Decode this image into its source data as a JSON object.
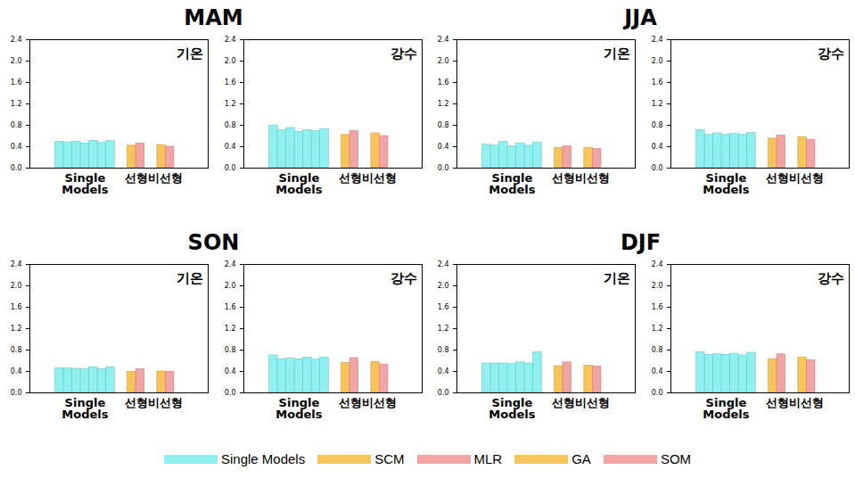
{
  "chart_data": [
    {
      "type": "bar",
      "title": "MAM",
      "subtitle": "기온",
      "categories": [
        "Single Models",
        null,
        null,
        null,
        null,
        null,
        null,
        "선형",
        null,
        "비선형",
        null
      ],
      "series": [
        {
          "name": "Single Models",
          "color": "#8ff0f0",
          "values": [
            0.49,
            0.48,
            0.49,
            0.46,
            0.51,
            0.47,
            0.51,
            null,
            null,
            null,
            null
          ]
        },
        {
          "name": "SCM",
          "color": "#f7c45a",
          "values": [
            null,
            null,
            null,
            null,
            null,
            null,
            null,
            0.42,
            null,
            null,
            null
          ]
        },
        {
          "name": "MLR",
          "color": "#f4a3a3",
          "values": [
            null,
            null,
            null,
            null,
            null,
            null,
            null,
            null,
            0.46,
            null,
            null
          ]
        },
        {
          "name": "GA",
          "color": "#f7c45a",
          "values": [
            null,
            null,
            null,
            null,
            null,
            null,
            null,
            null,
            null,
            0.43,
            null
          ]
        },
        {
          "name": "SOM",
          "color": "#f4a3a3",
          "values": [
            null,
            null,
            null,
            null,
            null,
            null,
            null,
            null,
            null,
            null,
            0.4
          ]
        }
      ],
      "ylim": [
        0,
        2.4
      ],
      "yticks": [
        {
          "value": 0,
          "label": "0.0"
        },
        {
          "value": 0.4,
          "label": "0.4"
        },
        {
          "value": 0.8,
          "label": "0.8"
        },
        {
          "value": 1.2,
          "label": "1.2"
        },
        {
          "value": 1.6,
          "label": "1.6"
        },
        {
          "value": 2,
          "label": "2.0"
        },
        {
          "value": 2.4,
          "label": "2.4"
        }
      ],
      "grid": false
    },
    {
      "type": "bar",
      "subtitle": "강수",
      "categories": [
        "Single Models",
        null,
        null,
        null,
        null,
        null,
        null,
        "선형",
        null,
        "비선형",
        null
      ],
      "series": [
        {
          "name": "Single Models",
          "color": "#8ff0f0",
          "values": [
            0.79,
            0.71,
            0.75,
            0.68,
            0.71,
            0.69,
            0.73,
            null,
            null,
            null,
            null
          ]
        },
        {
          "name": "SCM",
          "color": "#f7c45a",
          "values": [
            null,
            null,
            null,
            null,
            null,
            null,
            null,
            0.62,
            null,
            null,
            null
          ]
        },
        {
          "name": "MLR",
          "color": "#f4a3a3",
          "values": [
            null,
            null,
            null,
            null,
            null,
            null,
            null,
            null,
            0.69,
            null,
            null
          ]
        },
        {
          "name": "GA",
          "color": "#f7c45a",
          "values": [
            null,
            null,
            null,
            null,
            null,
            null,
            null,
            null,
            null,
            0.65,
            null
          ]
        },
        {
          "name": "SOM",
          "color": "#f4a3a3",
          "values": [
            null,
            null,
            null,
            null,
            null,
            null,
            null,
            null,
            null,
            null,
            0.6
          ]
        }
      ],
      "ylim": [
        0,
        2.4
      ],
      "yticks": [
        {
          "value": 0,
          "label": "0.0"
        },
        {
          "value": 0.4,
          "label": "0.4"
        },
        {
          "value": 0.8,
          "label": "0.8"
        },
        {
          "value": 1.2,
          "label": "1.2"
        },
        {
          "value": 1.6,
          "label": "1.6"
        },
        {
          "value": 2,
          "label": "2.0"
        },
        {
          "value": 2.4,
          "label": "2.4"
        }
      ],
      "grid": false
    },
    {
      "type": "bar",
      "title": "JJA",
      "subtitle": "기온",
      "categories": [
        "Single Models",
        null,
        null,
        null,
        null,
        null,
        null,
        "선형",
        null,
        "비선형",
        null
      ],
      "series": [
        {
          "name": "Single Models",
          "color": "#8ff0f0",
          "values": [
            0.44,
            0.42,
            0.49,
            0.41,
            0.46,
            0.42,
            0.48,
            null,
            null,
            null,
            null
          ]
        },
        {
          "name": "SCM",
          "color": "#f7c45a",
          "values": [
            null,
            null,
            null,
            null,
            null,
            null,
            null,
            0.38,
            null,
            null,
            null
          ]
        },
        {
          "name": "MLR",
          "color": "#f4a3a3",
          "values": [
            null,
            null,
            null,
            null,
            null,
            null,
            null,
            null,
            0.41,
            null,
            null
          ]
        },
        {
          "name": "GA",
          "color": "#f7c45a",
          "values": [
            null,
            null,
            null,
            null,
            null,
            null,
            null,
            null,
            null,
            0.38,
            null
          ]
        },
        {
          "name": "SOM",
          "color": "#f4a3a3",
          "values": [
            null,
            null,
            null,
            null,
            null,
            null,
            null,
            null,
            null,
            null,
            0.36
          ]
        }
      ],
      "ylim": [
        0,
        2.4
      ],
      "yticks": [
        {
          "value": 0,
          "label": "0.0"
        },
        {
          "value": 0.4,
          "label": "0.4"
        },
        {
          "value": 0.8,
          "label": "0.8"
        },
        {
          "value": 1.2,
          "label": "1.2"
        },
        {
          "value": 1.6,
          "label": "1.6"
        },
        {
          "value": 2,
          "label": "2.0"
        },
        {
          "value": 2.4,
          "label": "2.4"
        }
      ],
      "grid": false
    },
    {
      "type": "bar",
      "subtitle": "강수",
      "categories": [
        "Single Models",
        null,
        null,
        null,
        null,
        null,
        null,
        "선형",
        null,
        "비선형",
        null
      ],
      "series": [
        {
          "name": "Single Models",
          "color": "#8ff0f0",
          "values": [
            0.71,
            0.62,
            0.65,
            0.62,
            0.64,
            0.62,
            0.66,
            null,
            null,
            null,
            null
          ]
        },
        {
          "name": "SCM",
          "color": "#f7c45a",
          "values": [
            null,
            null,
            null,
            null,
            null,
            null,
            null,
            0.55,
            null,
            null,
            null
          ]
        },
        {
          "name": "MLR",
          "color": "#f4a3a3",
          "values": [
            null,
            null,
            null,
            null,
            null,
            null,
            null,
            null,
            0.61,
            null,
            null
          ]
        },
        {
          "name": "GA",
          "color": "#f7c45a",
          "values": [
            null,
            null,
            null,
            null,
            null,
            null,
            null,
            null,
            null,
            0.58,
            null
          ]
        },
        {
          "name": "SOM",
          "color": "#f4a3a3",
          "values": [
            null,
            null,
            null,
            null,
            null,
            null,
            null,
            null,
            null,
            null,
            0.53
          ]
        }
      ],
      "ylim": [
        0,
        2.4
      ],
      "yticks": [
        {
          "value": 0,
          "label": "0.0"
        },
        {
          "value": 0.4,
          "label": "0.4"
        },
        {
          "value": 0.8,
          "label": "0.8"
        },
        {
          "value": 1.2,
          "label": "1.2"
        },
        {
          "value": 1.6,
          "label": "1.6"
        },
        {
          "value": 2,
          "label": "2.0"
        },
        {
          "value": 2.4,
          "label": "2.4"
        }
      ],
      "grid": false
    },
    {
      "type": "bar",
      "title": "SON",
      "subtitle": "기온",
      "categories": [
        "Single Models",
        null,
        null,
        null,
        null,
        null,
        null,
        "선형",
        null,
        "비선형",
        null
      ],
      "series": [
        {
          "name": "Single Models",
          "color": "#8ff0f0",
          "values": [
            0.46,
            0.46,
            0.45,
            0.44,
            0.48,
            0.44,
            0.48,
            null,
            null,
            null,
            null
          ]
        },
        {
          "name": "SCM",
          "color": "#f7c45a",
          "values": [
            null,
            null,
            null,
            null,
            null,
            null,
            null,
            0.39,
            null,
            null,
            null
          ]
        },
        {
          "name": "MLR",
          "color": "#f4a3a3",
          "values": [
            null,
            null,
            null,
            null,
            null,
            null,
            null,
            null,
            0.44,
            null,
            null
          ]
        },
        {
          "name": "GA",
          "color": "#f7c45a",
          "values": [
            null,
            null,
            null,
            null,
            null,
            null,
            null,
            null,
            null,
            0.4,
            null
          ]
        },
        {
          "name": "SOM",
          "color": "#f4a3a3",
          "values": [
            null,
            null,
            null,
            null,
            null,
            null,
            null,
            null,
            null,
            null,
            0.39
          ]
        }
      ],
      "ylim": [
        0,
        2.4
      ],
      "yticks": [
        {
          "value": 0,
          "label": "0.0"
        },
        {
          "value": 0.4,
          "label": "0.4"
        },
        {
          "value": 0.8,
          "label": "0.8"
        },
        {
          "value": 1.2,
          "label": "1.2"
        },
        {
          "value": 1.6,
          "label": "1.6"
        },
        {
          "value": 2,
          "label": "2.0"
        },
        {
          "value": 2.4,
          "label": "2.4"
        }
      ],
      "grid": false
    },
    {
      "type": "bar",
      "subtitle": "강수",
      "categories": [
        "Single Models",
        null,
        null,
        null,
        null,
        null,
        null,
        "선형",
        null,
        "비선형",
        null
      ],
      "series": [
        {
          "name": "Single Models",
          "color": "#8ff0f0",
          "values": [
            0.7,
            0.63,
            0.64,
            0.63,
            0.66,
            0.62,
            0.66,
            null,
            null,
            null,
            null
          ]
        },
        {
          "name": "SCM",
          "color": "#f7c45a",
          "values": [
            null,
            null,
            null,
            null,
            null,
            null,
            null,
            0.56,
            null,
            null,
            null
          ]
        },
        {
          "name": "MLR",
          "color": "#f4a3a3",
          "values": [
            null,
            null,
            null,
            null,
            null,
            null,
            null,
            null,
            0.65,
            null,
            null
          ]
        },
        {
          "name": "GA",
          "color": "#f7c45a",
          "values": [
            null,
            null,
            null,
            null,
            null,
            null,
            null,
            null,
            null,
            0.58,
            null
          ]
        },
        {
          "name": "SOM",
          "color": "#f4a3a3",
          "values": [
            null,
            null,
            null,
            null,
            null,
            null,
            null,
            null,
            null,
            null,
            0.53
          ]
        }
      ],
      "ylim": [
        0,
        2.4
      ],
      "yticks": [
        {
          "value": 0,
          "label": "0.0"
        },
        {
          "value": 0.4,
          "label": "0.4"
        },
        {
          "value": 0.8,
          "label": "0.8"
        },
        {
          "value": 1.2,
          "label": "1.2"
        },
        {
          "value": 1.6,
          "label": "1.6"
        },
        {
          "value": 2,
          "label": "2.0"
        },
        {
          "value": 2.4,
          "label": "2.4"
        }
      ],
      "grid": false
    },
    {
      "type": "bar",
      "title": "DJF",
      "subtitle": "기온",
      "categories": [
        "Single Models",
        null,
        null,
        null,
        null,
        null,
        null,
        "선형",
        null,
        "비선형",
        null
      ],
      "series": [
        {
          "name": "Single Models",
          "color": "#8ff0f0",
          "values": [
            0.55,
            0.55,
            0.55,
            0.54,
            0.57,
            0.55,
            0.76,
            null,
            null,
            null,
            null
          ]
        },
        {
          "name": "SCM",
          "color": "#f7c45a",
          "values": [
            null,
            null,
            null,
            null,
            null,
            null,
            null,
            0.5,
            null,
            null,
            null
          ]
        },
        {
          "name": "MLR",
          "color": "#f4a3a3",
          "values": [
            null,
            null,
            null,
            null,
            null,
            null,
            null,
            null,
            0.57,
            null,
            null
          ]
        },
        {
          "name": "GA",
          "color": "#f7c45a",
          "values": [
            null,
            null,
            null,
            null,
            null,
            null,
            null,
            null,
            null,
            0.51,
            null
          ]
        },
        {
          "name": "SOM",
          "color": "#f4a3a3",
          "values": [
            null,
            null,
            null,
            null,
            null,
            null,
            null,
            null,
            null,
            null,
            0.49
          ]
        }
      ],
      "ylim": [
        0,
        2.4
      ],
      "yticks": [
        {
          "value": 0,
          "label": "0.0"
        },
        {
          "value": 0.4,
          "label": "0.4"
        },
        {
          "value": 0.8,
          "label": "0.8"
        },
        {
          "value": 1.2,
          "label": "1.2"
        },
        {
          "value": 1.6,
          "label": "1.6"
        },
        {
          "value": 2,
          "label": "2.0"
        },
        {
          "value": 2.4,
          "label": "2.4"
        }
      ],
      "grid": false
    },
    {
      "type": "bar",
      "subtitle": "강수",
      "categories": [
        "Single Models",
        null,
        null,
        null,
        null,
        null,
        null,
        "선형",
        null,
        "비선형",
        null
      ],
      "series": [
        {
          "name": "Single Models",
          "color": "#8ff0f0",
          "values": [
            0.76,
            0.71,
            0.72,
            0.71,
            0.73,
            0.7,
            0.75,
            null,
            null,
            null,
            null
          ]
        },
        {
          "name": "SCM",
          "color": "#f7c45a",
          "values": [
            null,
            null,
            null,
            null,
            null,
            null,
            null,
            0.63,
            null,
            null,
            null
          ]
        },
        {
          "name": "MLR",
          "color": "#f4a3a3",
          "values": [
            null,
            null,
            null,
            null,
            null,
            null,
            null,
            null,
            0.72,
            null,
            null
          ]
        },
        {
          "name": "GA",
          "color": "#f7c45a",
          "values": [
            null,
            null,
            null,
            null,
            null,
            null,
            null,
            null,
            null,
            0.66,
            null
          ]
        },
        {
          "name": "SOM",
          "color": "#f4a3a3",
          "values": [
            null,
            null,
            null,
            null,
            null,
            null,
            null,
            null,
            null,
            null,
            0.61
          ]
        }
      ],
      "ylim": [
        0,
        2.4
      ],
      "yticks": [
        {
          "value": 0,
          "label": "0.0"
        },
        {
          "value": 0.4,
          "label": "0.4"
        },
        {
          "value": 0.8,
          "label": "0.8"
        },
        {
          "value": 1.2,
          "label": "1.2"
        },
        {
          "value": 1.6,
          "label": "1.6"
        },
        {
          "value": 2,
          "label": "2.0"
        },
        {
          "value": 2.4,
          "label": "2.4"
        }
      ],
      "grid": false
    }
  ]
}
